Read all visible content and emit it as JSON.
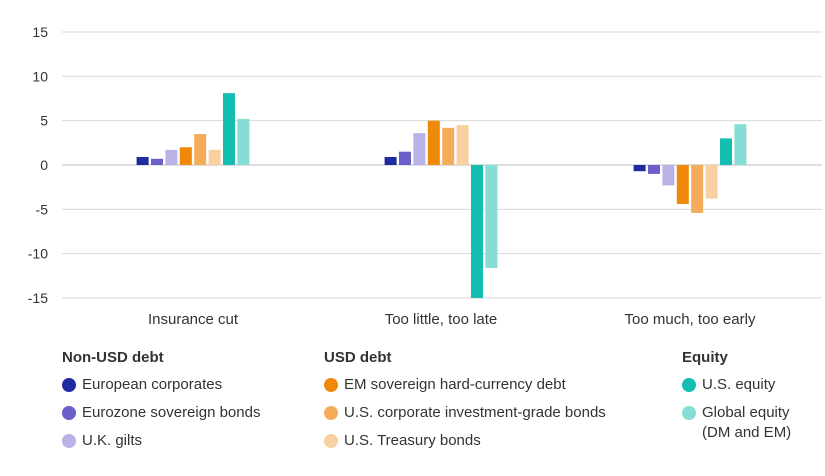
{
  "chart_data": {
    "type": "bar",
    "title": "",
    "xlabel": "",
    "ylabel": "",
    "ylim": [
      -15,
      15
    ],
    "yticks": [
      15,
      10,
      5,
      0,
      -5,
      -10,
      -15
    ],
    "grid": true,
    "legend_position": "bottom",
    "categories": [
      "Insurance cut",
      "Too little, too late",
      "Too much, too early"
    ],
    "series": [
      {
        "name": "European corporates",
        "color": "#1f2a9e",
        "values": [
          0.9,
          0.9,
          -0.7
        ]
      },
      {
        "name": "Eurozone sovereign bonds",
        "color": "#6b5fc9",
        "values": [
          0.7,
          1.5,
          -1.0
        ]
      },
      {
        "name": "U.K. gilts",
        "color": "#b9b2e6",
        "values": [
          1.7,
          3.6,
          -2.3
        ]
      },
      {
        "name": "EM sovereign hard-currency debt",
        "color": "#f0890a",
        "values": [
          2.0,
          5.0,
          -4.4
        ]
      },
      {
        "name": "U.S. corporate investment-grade bonds",
        "color": "#f4ac5a",
        "values": [
          3.5,
          4.2,
          -5.4
        ]
      },
      {
        "name": "U.S. Treasury bonds",
        "color": "#f9d0a1",
        "values": [
          1.7,
          4.5,
          -3.8
        ]
      },
      {
        "name": "U.S. equity",
        "color": "#13bdb0",
        "values": [
          8.1,
          -15.0,
          3.0
        ]
      },
      {
        "name": "Global equity\n(DM and EM)",
        "color": "#86ddd3",
        "values": [
          5.2,
          -11.6,
          4.6
        ]
      }
    ]
  },
  "legend": {
    "groups": [
      {
        "title": "Non-USD debt",
        "series_index": [
          0,
          1,
          2
        ]
      },
      {
        "title": "USD debt",
        "series_index": [
          3,
          4,
          5
        ]
      },
      {
        "title": "Equity",
        "series_index": [
          6,
          7
        ]
      }
    ]
  }
}
